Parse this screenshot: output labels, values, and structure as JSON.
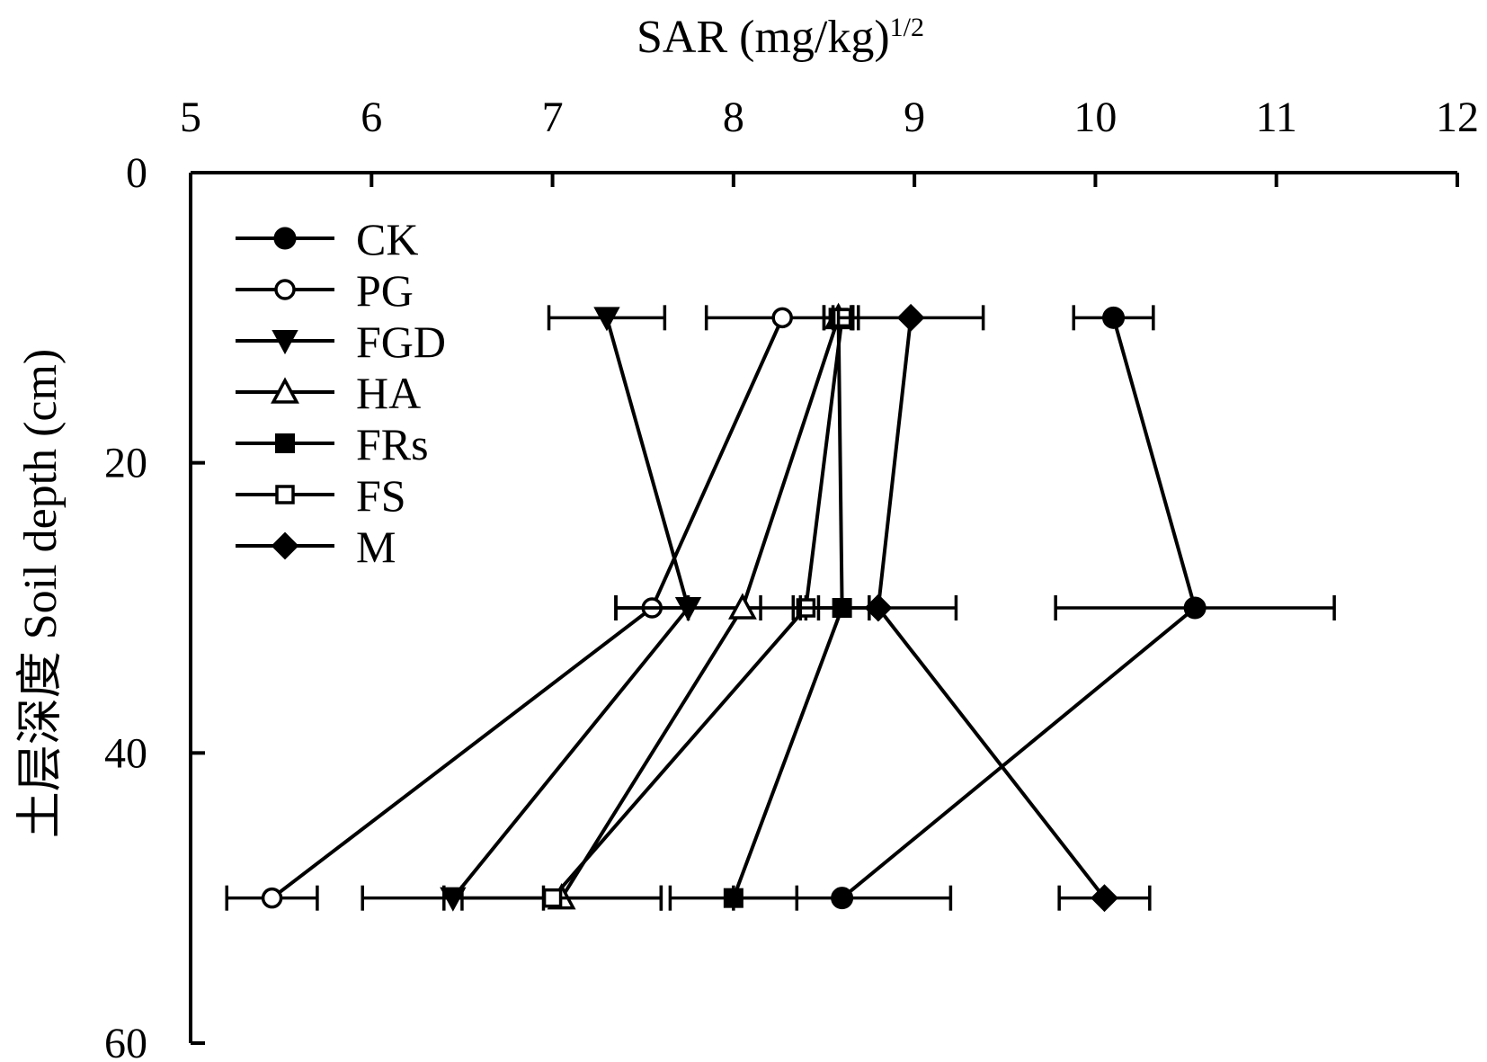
{
  "chart_data": {
    "type": "line",
    "xlabel": "SAR (mg/kg)",
    "xlabel_sup": "1/2",
    "ylabel": "土层深度 Soil depth (cm)",
    "x_axis_position": "top",
    "y_axis_inverted": true,
    "xlim": [
      5,
      12
    ],
    "ylim": [
      0,
      60
    ],
    "x_ticks": [
      5,
      6,
      7,
      8,
      9,
      10,
      11,
      12
    ],
    "y_ticks": [
      0,
      20,
      40,
      60
    ],
    "grid": false,
    "legend_position": "top-left",
    "depths": [
      10,
      30,
      50
    ],
    "series": [
      {
        "name": "CK",
        "marker": "circle-filled",
        "x": [
          10.1,
          10.55,
          8.6
        ],
        "err": [
          0.22,
          0.77,
          0.6
        ]
      },
      {
        "name": "PG",
        "marker": "circle-open",
        "x": [
          8.27,
          7.55,
          5.45
        ],
        "err": [
          0.42,
          0.2,
          0.25
        ]
      },
      {
        "name": "FGD",
        "marker": "triangle-down-filled",
        "x": [
          7.3,
          7.75,
          6.45
        ],
        "err": [
          0.32,
          0.4,
          0.5
        ]
      },
      {
        "name": "HA",
        "marker": "triangle-up-open",
        "x": [
          8.58,
          8.05,
          7.05
        ],
        "err": [
          0.08,
          0.7,
          0.55
        ]
      },
      {
        "name": "FRs",
        "marker": "square-filled",
        "x": [
          8.58,
          8.6,
          8.0
        ],
        "err": [
          0.08,
          0.2,
          0.35
        ]
      },
      {
        "name": "FS",
        "marker": "square-open",
        "x": [
          8.6,
          8.4,
          7.0
        ],
        "err": [
          0.05,
          0.07,
          0.6
        ]
      },
      {
        "name": "M",
        "marker": "diamond-filled",
        "x": [
          8.98,
          8.8,
          10.05
        ],
        "err": [
          0.4,
          0.43,
          0.25
        ]
      }
    ]
  }
}
